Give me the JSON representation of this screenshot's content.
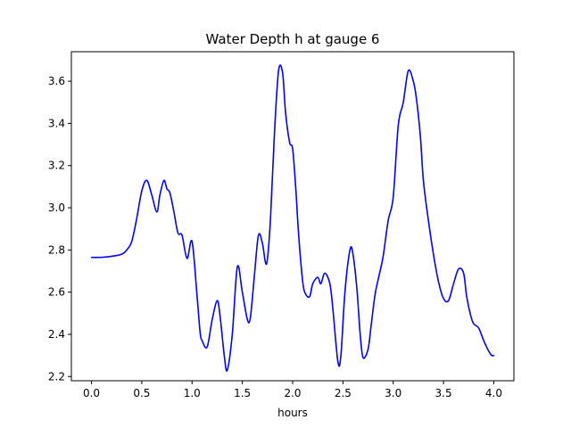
{
  "chart_data": {
    "type": "line",
    "title": "Water Depth h at gauge 6",
    "xlabel": "hours",
    "ylabel": "",
    "xlim": [
      -0.2,
      4.2
    ],
    "ylim": [
      2.18,
      3.74
    ],
    "xticks": [
      0.0,
      0.5,
      1.0,
      1.5,
      2.0,
      2.5,
      3.0,
      3.5,
      4.0
    ],
    "xtick_labels": [
      "0.0",
      "0.5",
      "1.0",
      "1.5",
      "2.0",
      "2.5",
      "3.0",
      "3.5",
      "4.0"
    ],
    "yticks": [
      2.2,
      2.4,
      2.6,
      2.8,
      3.0,
      3.2,
      3.4,
      3.6
    ],
    "ytick_labels": [
      "2.2",
      "2.4",
      "2.6",
      "2.8",
      "3.0",
      "3.2",
      "3.4",
      "3.6"
    ],
    "grid": false,
    "series": [
      {
        "color": "#0000ff",
        "x": [
          0.0,
          0.1,
          0.2,
          0.3,
          0.35,
          0.4,
          0.45,
          0.5,
          0.55,
          0.6,
          0.65,
          0.68,
          0.72,
          0.75,
          0.78,
          0.82,
          0.86,
          0.9,
          0.95,
          1.0,
          1.05,
          1.08,
          1.1,
          1.15,
          1.2,
          1.25,
          1.28,
          1.32,
          1.35,
          1.4,
          1.45,
          1.5,
          1.55,
          1.58,
          1.62,
          1.66,
          1.7,
          1.73,
          1.75,
          1.78,
          1.82,
          1.86,
          1.9,
          1.93,
          1.97,
          2.0,
          2.03,
          2.06,
          2.1,
          2.13,
          2.17,
          2.2,
          2.25,
          2.28,
          2.32,
          2.37,
          2.4,
          2.45,
          2.48,
          2.52,
          2.57,
          2.6,
          2.64,
          2.67,
          2.7,
          2.75,
          2.78,
          2.82,
          2.86,
          2.9,
          2.95,
          3.0,
          3.05,
          3.1,
          3.15,
          3.2,
          3.23,
          3.27,
          3.3,
          3.35,
          3.4,
          3.45,
          3.5,
          3.55,
          3.6,
          3.65,
          3.7,
          3.73,
          3.77,
          3.8,
          3.85,
          3.9,
          3.95,
          3.98,
          4.0
        ],
        "y": [
          2.765,
          2.765,
          2.77,
          2.78,
          2.8,
          2.84,
          2.95,
          3.08,
          3.13,
          3.06,
          2.98,
          3.06,
          3.13,
          3.09,
          3.07,
          2.98,
          2.88,
          2.87,
          2.76,
          2.84,
          2.58,
          2.41,
          2.37,
          2.34,
          2.47,
          2.56,
          2.48,
          2.3,
          2.23,
          2.4,
          2.72,
          2.6,
          2.47,
          2.48,
          2.68,
          2.87,
          2.83,
          2.74,
          2.76,
          2.95,
          3.36,
          3.65,
          3.64,
          3.45,
          3.31,
          3.28,
          3.1,
          2.87,
          2.65,
          2.59,
          2.58,
          2.64,
          2.67,
          2.64,
          2.69,
          2.64,
          2.52,
          2.27,
          2.3,
          2.6,
          2.8,
          2.78,
          2.61,
          2.41,
          2.29,
          2.33,
          2.44,
          2.59,
          2.68,
          2.77,
          2.94,
          3.05,
          3.39,
          3.5,
          3.65,
          3.6,
          3.52,
          3.34,
          3.13,
          2.94,
          2.78,
          2.65,
          2.57,
          2.56,
          2.64,
          2.71,
          2.69,
          2.58,
          2.49,
          2.45,
          2.43,
          2.37,
          2.32,
          2.3,
          2.3
        ]
      }
    ]
  }
}
